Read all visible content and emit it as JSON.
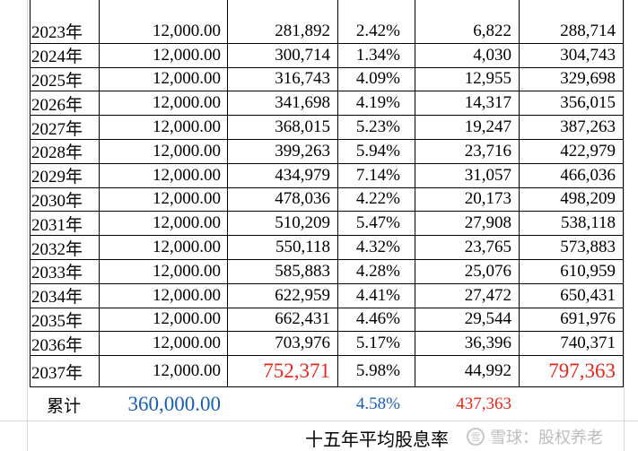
{
  "rows": [
    {
      "year": "2023年",
      "principal": "12,000.00",
      "start": "281,892",
      "rate": "2.42%",
      "dividend": "6,822",
      "end": "288,714"
    },
    {
      "year": "2024年",
      "principal": "12,000.00",
      "start": "300,714",
      "rate": "1.34%",
      "dividend": "4,030",
      "end": "304,743"
    },
    {
      "year": "2025年",
      "principal": "12,000.00",
      "start": "316,743",
      "rate": "4.09%",
      "dividend": "12,955",
      "end": "329,698"
    },
    {
      "year": "2026年",
      "principal": "12,000.00",
      "start": "341,698",
      "rate": "4.19%",
      "dividend": "14,317",
      "end": "356,015"
    },
    {
      "year": "2027年",
      "principal": "12,000.00",
      "start": "368,015",
      "rate": "5.23%",
      "dividend": "19,247",
      "end": "387,263"
    },
    {
      "year": "2028年",
      "principal": "12,000.00",
      "start": "399,263",
      "rate": "5.94%",
      "dividend": "23,716",
      "end": "422,979"
    },
    {
      "year": "2029年",
      "principal": "12,000.00",
      "start": "434,979",
      "rate": "7.14%",
      "dividend": "31,057",
      "end": "466,036"
    },
    {
      "year": "2030年",
      "principal": "12,000.00",
      "start": "478,036",
      "rate": "4.22%",
      "dividend": "20,173",
      "end": "498,209"
    },
    {
      "year": "2031年",
      "principal": "12,000.00",
      "start": "510,209",
      "rate": "5.47%",
      "dividend": "27,908",
      "end": "538,118"
    },
    {
      "year": "2032年",
      "principal": "12,000.00",
      "start": "550,118",
      "rate": "4.32%",
      "dividend": "23,765",
      "end": "573,883"
    },
    {
      "year": "2033年",
      "principal": "12,000.00",
      "start": "585,883",
      "rate": "4.28%",
      "dividend": "25,076",
      "end": "610,959"
    },
    {
      "year": "2034年",
      "principal": "12,000.00",
      "start": "622,959",
      "rate": "4.41%",
      "dividend": "27,472",
      "end": "650,431"
    },
    {
      "year": "2035年",
      "principal": "12,000.00",
      "start": "662,431",
      "rate": "4.46%",
      "dividend": "29,544",
      "end": "691,976"
    },
    {
      "year": "2036年",
      "principal": "12,000.00",
      "start": "703,976",
      "rate": "5.17%",
      "dividend": "36,396",
      "end": "740,371"
    },
    {
      "year": "2037年",
      "principal": "12,000.00",
      "start": "752,371",
      "rate": "5.98%",
      "dividend": "44,992",
      "end": "797,363"
    }
  ],
  "totals": {
    "label": "累计",
    "principal": "360,000.00",
    "rate": "4.58%",
    "dividend": "437,363"
  },
  "caption": "十五年平均股息率",
  "watermark": {
    "logo": "雪",
    "text": "雪球：股权养老"
  },
  "colors": {
    "red": "#e8261c",
    "blue": "#1a5fb4",
    "gridline": "#d9d9d9"
  }
}
